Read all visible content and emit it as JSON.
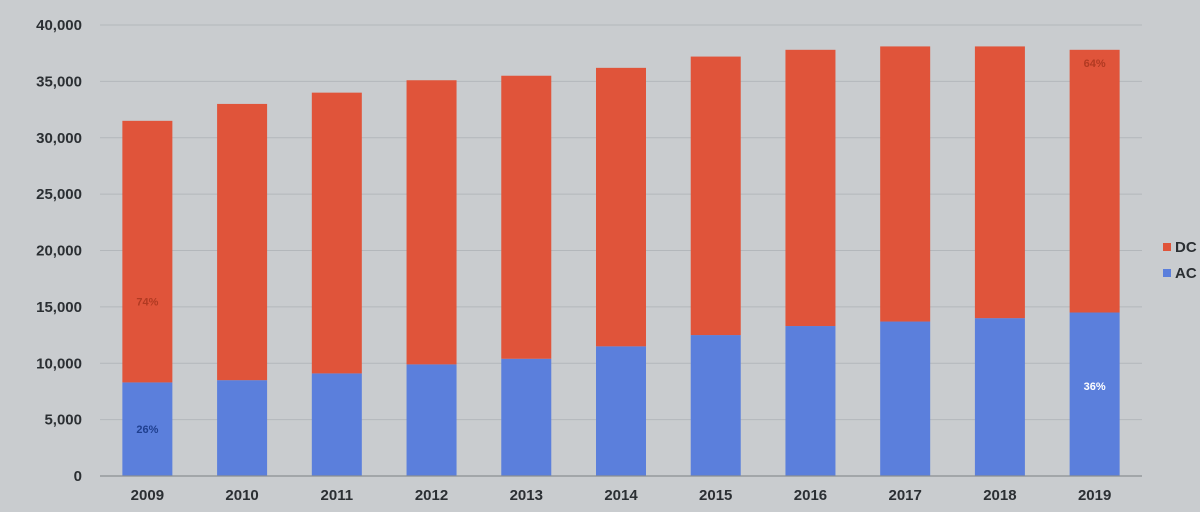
{
  "chart_data": {
    "type": "bar",
    "stacked": true,
    "categories": [
      "2009",
      "2010",
      "2011",
      "2012",
      "2013",
      "2014",
      "2015",
      "2016",
      "2017",
      "2018",
      "2019"
    ],
    "series": [
      {
        "name": "AC",
        "color": "#5b7fdc",
        "values": [
          8300,
          8500,
          9100,
          9900,
          10400,
          11500,
          12500,
          13300,
          13700,
          14000,
          14500
        ]
      },
      {
        "name": "DC",
        "color": "#e0543a",
        "values": [
          23200,
          24500,
          24900,
          25200,
          25100,
          24700,
          24700,
          24500,
          24400,
          24100,
          23300
        ]
      }
    ],
    "ylim": [
      0,
      40000
    ],
    "yticks": [
      "0",
      "5,000",
      "10,000",
      "15,000",
      "20,000",
      "25,000",
      "30,000",
      "35,000",
      "40,000"
    ],
    "ytick_values": [
      0,
      5000,
      10000,
      15000,
      20000,
      25000,
      30000,
      35000,
      40000
    ],
    "grid": true,
    "legend_position": "right",
    "legend": [
      "DC",
      "AC"
    ],
    "annotations": [
      {
        "category": "2009",
        "series": "DC",
        "text": "74%"
      },
      {
        "category": "2009",
        "series": "AC",
        "text": "26%"
      },
      {
        "category": "2019",
        "series": "DC",
        "text": "64%"
      },
      {
        "category": "2019",
        "series": "AC",
        "text": "36%"
      }
    ],
    "title": "",
    "xlabel": "",
    "ylabel": ""
  }
}
